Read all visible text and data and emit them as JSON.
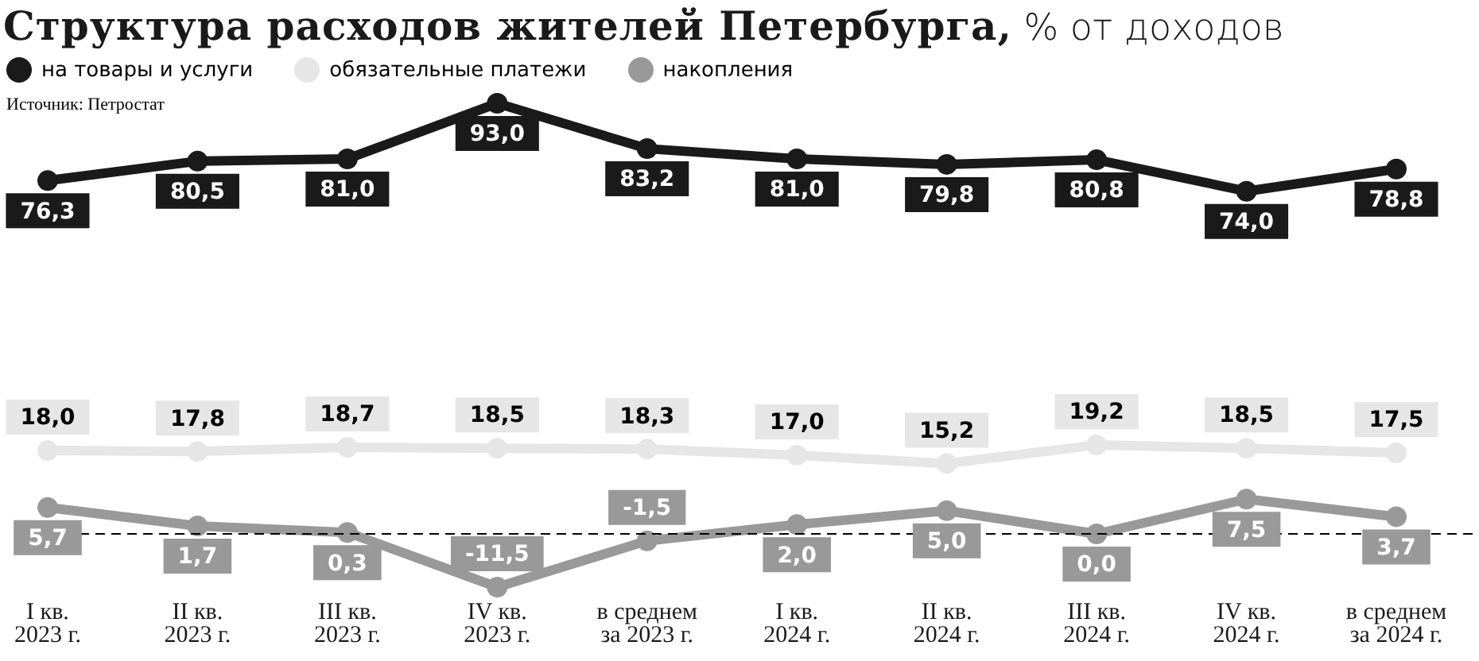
{
  "chart_data": {
    "type": "line",
    "title": "Структура расходов жителей Петербурга, % от доходов",
    "annotations": [
      "Источник: Петростат"
    ],
    "categories": [
      "I кв.\n2023 г.",
      "II кв.\n2023 г.",
      "III кв.\n2023 г.",
      "IV кв.\n2023 г.",
      "в среднем\nза 2023 г.",
      "I кв.\n2024 г.",
      "II кв.\n2024 г.",
      "III кв.\n2024 г.",
      "IV кв.\n2024 г.",
      "в среднем\nза 2024 г."
    ],
    "series": [
      {
        "name": "на товары и услуги",
        "color": "#1a1a1a",
        "values": [
          76.3,
          80.5,
          81.0,
          93.0,
          83.2,
          81.0,
          79.8,
          80.8,
          74.0,
          78.8
        ],
        "value_labels": [
          "76,3",
          "80,5",
          "81,0",
          "93,0",
          "83,2",
          "81,0",
          "79,8",
          "80,8",
          "74,0",
          "78,8"
        ]
      },
      {
        "name": "обязательные платежи",
        "color": "#e6e6e6",
        "values": [
          18.0,
          17.8,
          18.7,
          18.5,
          18.3,
          17.0,
          15.2,
          19.2,
          18.5,
          17.5
        ],
        "value_labels": [
          "18,0",
          "17,8",
          "18,7",
          "18,5",
          "18,3",
          "17,0",
          "15,2",
          "19,2",
          "18,5",
          "17,5"
        ]
      },
      {
        "name": "накопления",
        "color": "#999999",
        "values": [
          5.7,
          1.7,
          0.3,
          -11.5,
          -1.5,
          2.0,
          5.0,
          0.0,
          7.5,
          3.7
        ],
        "value_labels": [
          "5,7",
          "1,7",
          "0,3",
          "-11,5",
          "-1,5",
          "2,0",
          "5,0",
          "0,0",
          "7,5",
          "3,7"
        ]
      }
    ],
    "ref_lines": [
      {
        "axis": "y",
        "value": 0,
        "color": "#000000",
        "line_style": "dashed"
      }
    ],
    "legend": "top left",
    "marker": "circle",
    "line_style": "solid",
    "tick_labels": "x",
    "grid": false
  }
}
